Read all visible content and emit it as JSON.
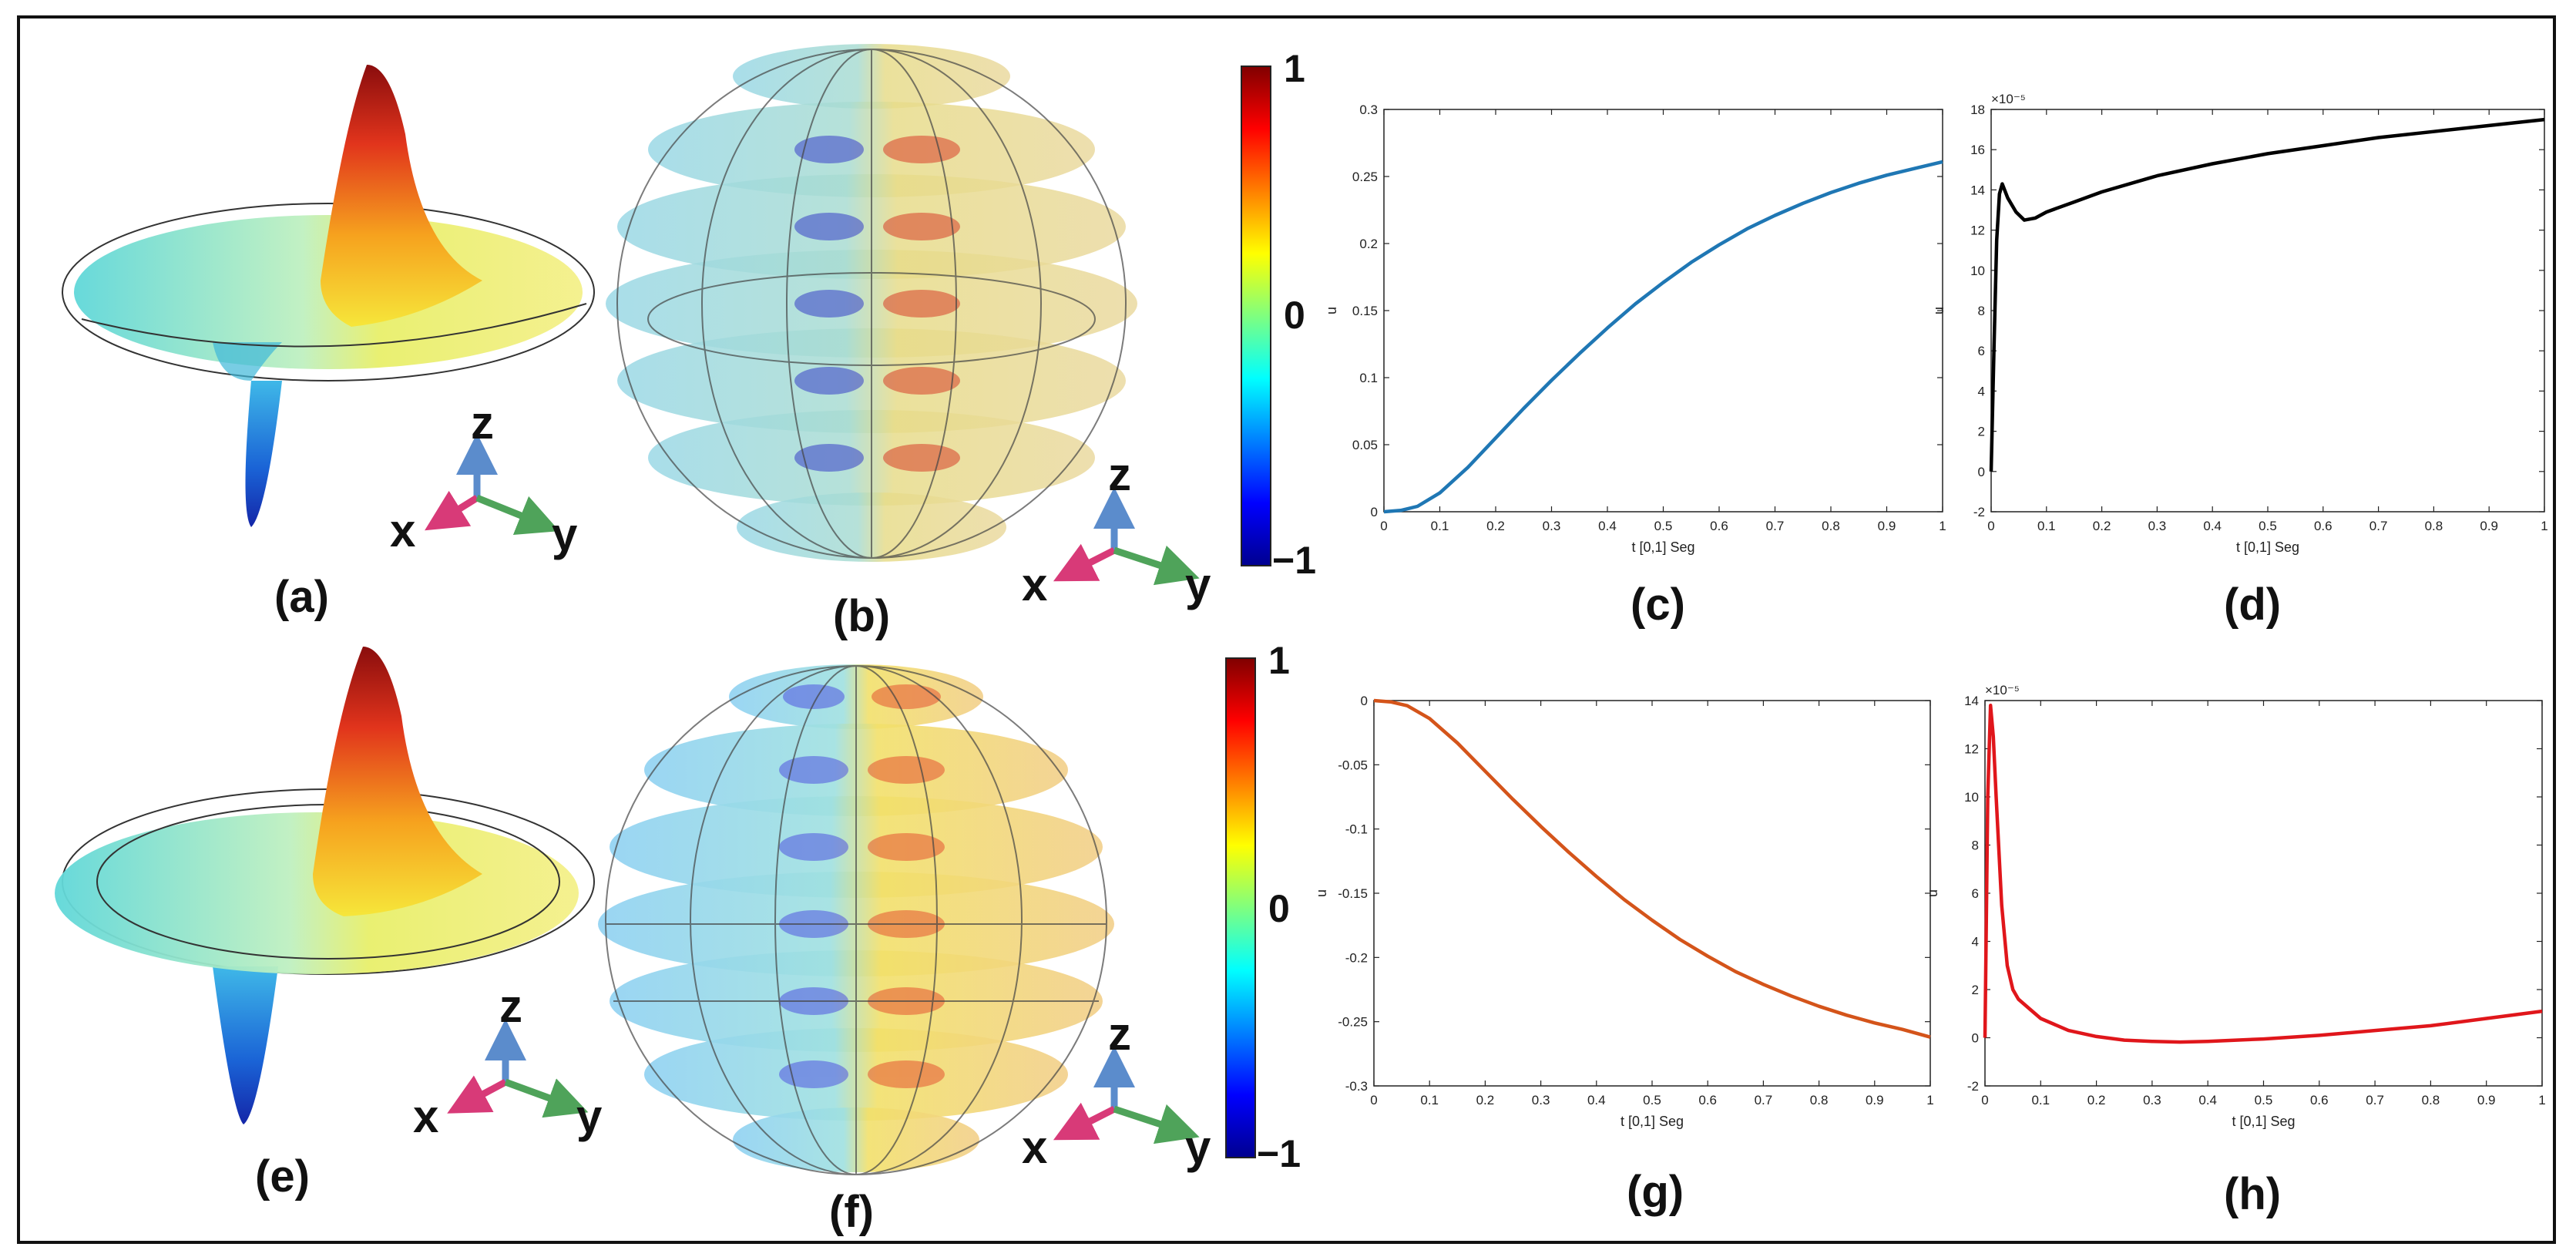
{
  "panels": {
    "a": "(a)",
    "b": "(b)",
    "c": "(c)",
    "d": "(d)",
    "e": "(e)",
    "f": "(f)",
    "g": "(g)",
    "h": "(h)"
  },
  "axes_labels": {
    "x": "x",
    "y": "y",
    "z": "z"
  },
  "colorbar": {
    "ticks": [
      "1",
      "0",
      "−1"
    ]
  },
  "colors": {
    "c": "#1f77b4",
    "d": "#000000",
    "g": "#d4541a",
    "h": "#e0161b",
    "axis_x": "#d83a78",
    "axis_y": "#4fa35a",
    "axis_z": "#5b8ccc"
  },
  "chart_data": [
    {
      "id": "c",
      "type": "line",
      "xlabel": "t [0,1] Seg",
      "ylabel": "u",
      "xlim": [
        0,
        1
      ],
      "ylim": [
        0,
        0.3
      ],
      "xticks": [
        "0",
        "0.1",
        "0.2",
        "0.3",
        "0.4",
        "0.5",
        "0.6",
        "0.7",
        "0.8",
        "0.9",
        "1"
      ],
      "yticks": [
        "0",
        "0.05",
        "0.1",
        "0.15",
        "0.2",
        "0.25",
        "0.3"
      ],
      "series": [
        {
          "name": "u",
          "x": [
            0,
            0.03,
            0.06,
            0.1,
            0.15,
            0.2,
            0.25,
            0.3,
            0.35,
            0.4,
            0.45,
            0.5,
            0.55,
            0.6,
            0.65,
            0.7,
            0.75,
            0.8,
            0.85,
            0.9,
            0.95,
            1.0
          ],
          "y": [
            0,
            0.001,
            0.004,
            0.014,
            0.033,
            0.055,
            0.077,
            0.098,
            0.118,
            0.137,
            0.155,
            0.171,
            0.186,
            0.199,
            0.211,
            0.221,
            0.23,
            0.238,
            0.245,
            0.251,
            0.256,
            0.261
          ]
        }
      ]
    },
    {
      "id": "d",
      "type": "line",
      "xlabel": "t [0,1] Seg",
      "ylabel": "u",
      "xlim": [
        0,
        1
      ],
      "ylim": [
        -2,
        18
      ],
      "exponent": "×10⁻⁵",
      "xticks": [
        "0",
        "0.1",
        "0.2",
        "0.3",
        "0.4",
        "0.5",
        "0.6",
        "0.7",
        "0.8",
        "0.9",
        "1"
      ],
      "yticks": [
        "-2",
        "0",
        "2",
        "4",
        "6",
        "8",
        "10",
        "12",
        "14",
        "16",
        "18"
      ],
      "series": [
        {
          "name": "u",
          "x": [
            0,
            0.005,
            0.01,
            0.015,
            0.02,
            0.03,
            0.045,
            0.06,
            0.08,
            0.1,
            0.15,
            0.2,
            0.3,
            0.4,
            0.5,
            0.6,
            0.7,
            0.8,
            0.9,
            1.0
          ],
          "y": [
            0,
            6,
            11.5,
            13.8,
            14.3,
            13.6,
            12.9,
            12.5,
            12.6,
            12.9,
            13.4,
            13.9,
            14.7,
            15.3,
            15.8,
            16.2,
            16.6,
            16.9,
            17.2,
            17.5
          ]
        }
      ]
    },
    {
      "id": "g",
      "type": "line",
      "xlabel": "t [0,1] Seg",
      "ylabel": "u",
      "xlim": [
        0,
        1
      ],
      "ylim": [
        -0.3,
        0
      ],
      "xticks": [
        "0",
        "0.1",
        "0.2",
        "0.3",
        "0.4",
        "0.5",
        "0.6",
        "0.7",
        "0.8",
        "0.9",
        "1"
      ],
      "yticks": [
        "-0.3",
        "-0.25",
        "-0.2",
        "-0.15",
        "-0.1",
        "-0.05",
        "0"
      ],
      "series": [
        {
          "name": "u",
          "x": [
            0,
            0.03,
            0.06,
            0.1,
            0.15,
            0.2,
            0.25,
            0.3,
            0.35,
            0.4,
            0.45,
            0.5,
            0.55,
            0.6,
            0.65,
            0.7,
            0.75,
            0.8,
            0.85,
            0.9,
            0.95,
            1.0
          ],
          "y": [
            0,
            -0.001,
            -0.004,
            -0.014,
            -0.033,
            -0.055,
            -0.077,
            -0.098,
            -0.118,
            -0.137,
            -0.155,
            -0.171,
            -0.186,
            -0.199,
            -0.211,
            -0.221,
            -0.23,
            -0.238,
            -0.245,
            -0.251,
            -0.256,
            -0.262
          ]
        }
      ]
    },
    {
      "id": "h",
      "type": "line",
      "xlabel": "t [0,1] Seg",
      "ylabel": "u",
      "xlim": [
        0,
        1
      ],
      "ylim": [
        -2,
        14
      ],
      "exponent": "×10⁻⁵",
      "xticks": [
        "0",
        "0.1",
        "0.2",
        "0.3",
        "0.4",
        "0.5",
        "0.6",
        "0.7",
        "0.8",
        "0.9",
        "1"
      ],
      "yticks": [
        "-2",
        "0",
        "2",
        "4",
        "6",
        "8",
        "10",
        "12",
        "14"
      ],
      "series": [
        {
          "name": "u",
          "x": [
            0,
            0.005,
            0.01,
            0.015,
            0.02,
            0.03,
            0.04,
            0.05,
            0.06,
            0.08,
            0.1,
            0.15,
            0.2,
            0.25,
            0.3,
            0.35,
            0.4,
            0.5,
            0.6,
            0.7,
            0.8,
            0.9,
            1.0
          ],
          "y": [
            0,
            10,
            13.8,
            12.5,
            10,
            5.5,
            3,
            2,
            1.6,
            1.2,
            0.8,
            0.3,
            0.05,
            -0.1,
            -0.15,
            -0.18,
            -0.15,
            -0.05,
            0.1,
            0.3,
            0.5,
            0.8,
            1.1
          ]
        }
      ]
    }
  ]
}
